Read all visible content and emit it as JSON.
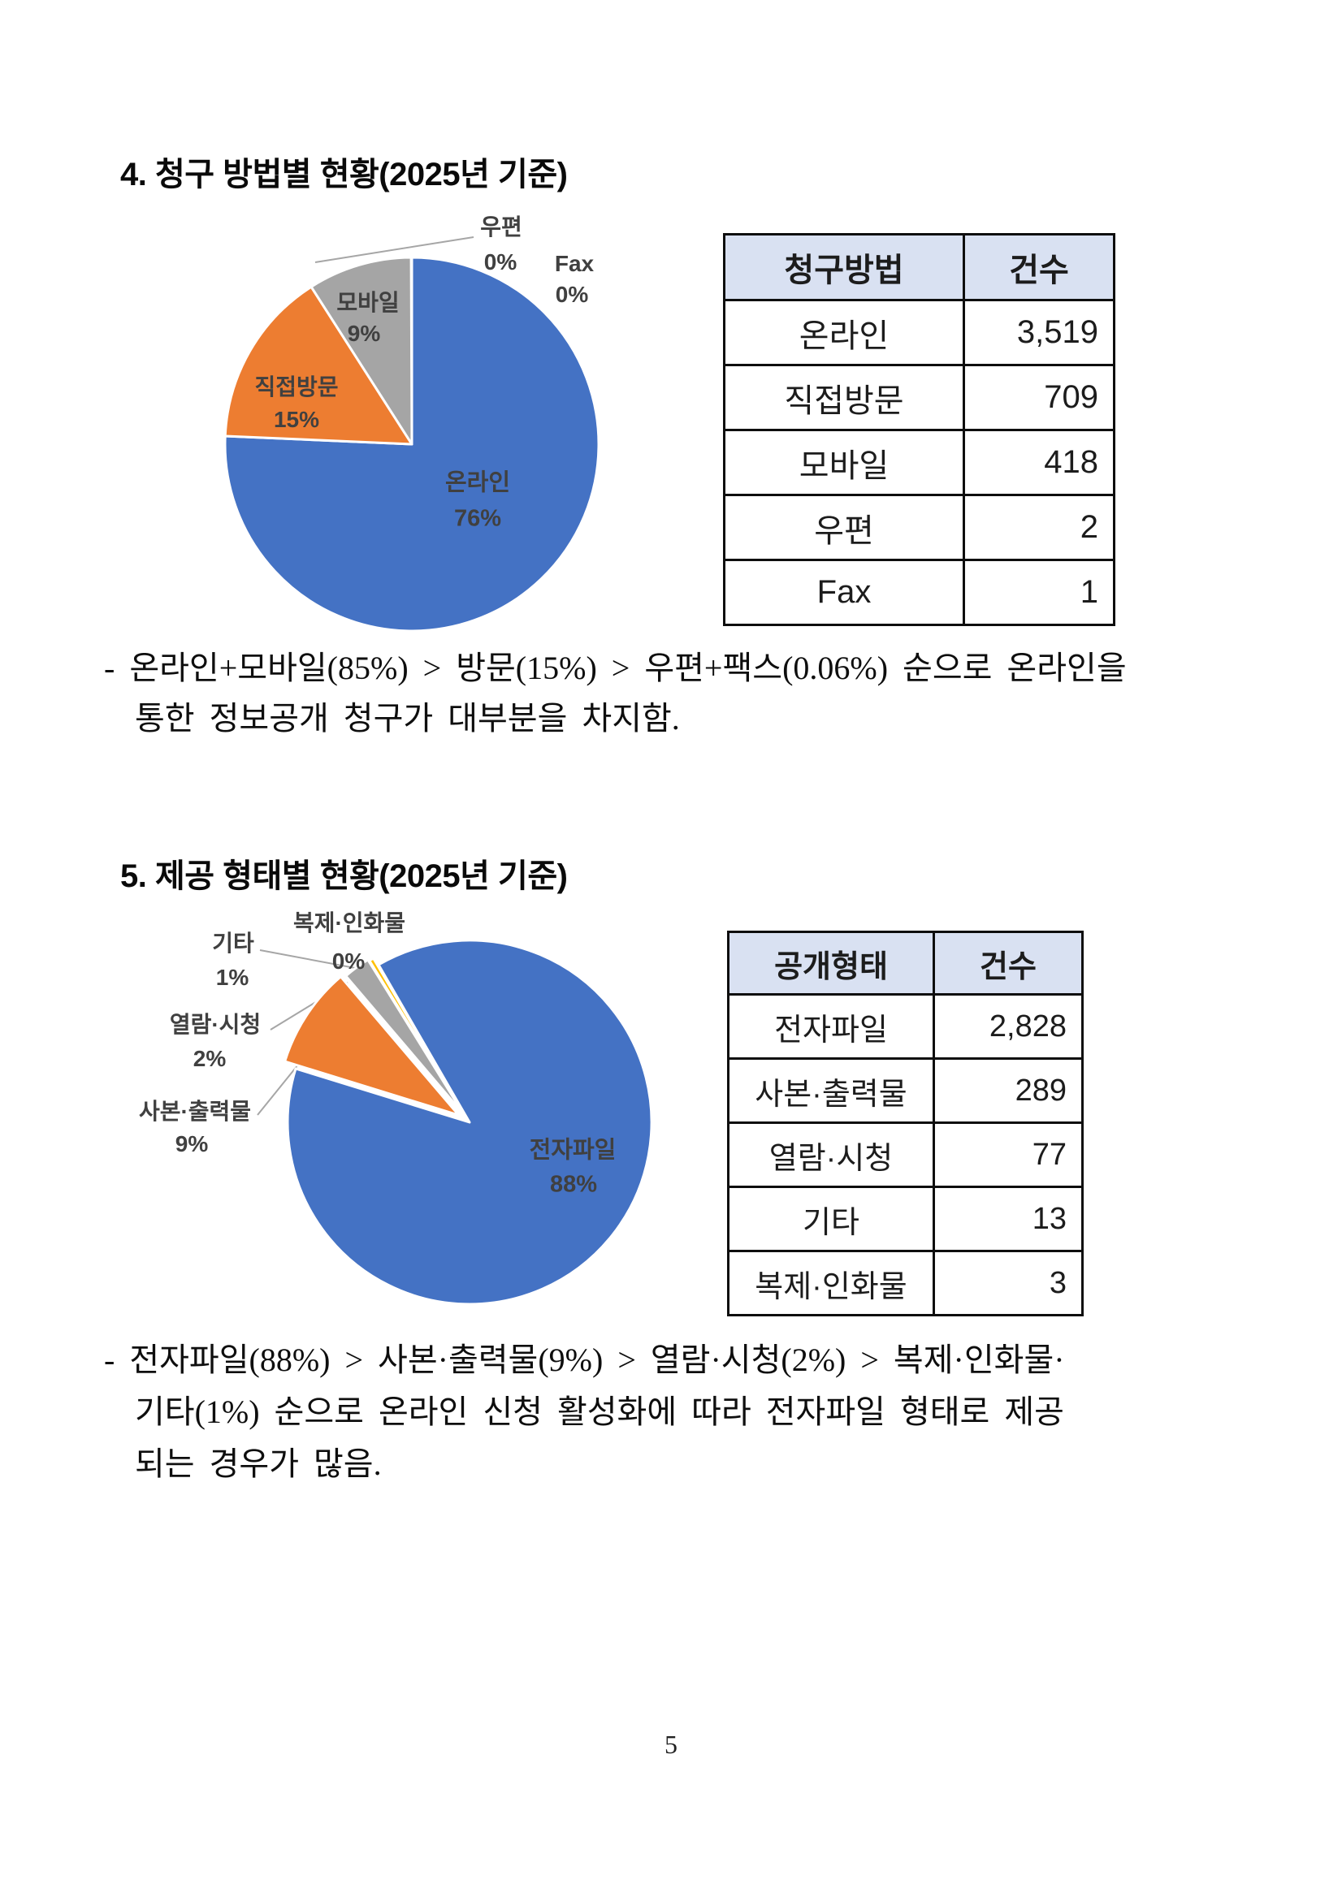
{
  "page": {
    "number": "5",
    "background": "#ffffff"
  },
  "section4": {
    "title": "4. 청구 방법별 현황(2025년 기준)",
    "table": {
      "headers": [
        "청구방법",
        "건수"
      ],
      "rows": [
        [
          "온라인",
          "3,519"
        ],
        [
          "직접방문",
          "709"
        ],
        [
          "모바일",
          "418"
        ],
        [
          "우편",
          "2"
        ],
        [
          "Fax",
          "1"
        ]
      ]
    },
    "note_lines": [
      "- 온라인+모바일(85%) > 방문(15%) > 우편+팩스(0.06%) 순으로 온라인을",
      "통한 정보공개 청구가 대부분을 차지함."
    ]
  },
  "section5": {
    "title": "5. 제공 형태별 현황(2025년 기준)",
    "table": {
      "headers": [
        "공개형태",
        "건수"
      ],
      "rows": [
        [
          "전자파일",
          "2,828"
        ],
        [
          "사본·출력물",
          "289"
        ],
        [
          "열람·시청",
          "77"
        ],
        [
          "기타",
          "13"
        ],
        [
          "복제·인화물",
          "3"
        ]
      ]
    },
    "note_lines": [
      "- 전자파일(88%) > 사본·출력물(9%) > 열람·시청(2%) > 복제·인화물·",
      "기타(1%) 순으로 온라인 신청 활성화에 따라 전자파일 형태로 제공",
      "되는 경우가 많음."
    ]
  },
  "chart_data": [
    {
      "type": "pie",
      "title": "청구 방법별 현황(2025년 기준)",
      "categories": [
        "온라인",
        "직접방문",
        "모바일",
        "우편",
        "Fax"
      ],
      "values": [
        3519,
        709,
        418,
        2,
        1
      ],
      "percent_labels": [
        "76%",
        "15%",
        "9%",
        "0%",
        "0%"
      ],
      "colors": [
        "#4472C4",
        "#ED7D31",
        "#A5A5A5",
        "#FFC000",
        "#5B9BD5"
      ],
      "keys": [
        "online",
        "visit",
        "mobile",
        "mail",
        "fax"
      ],
      "start_angle": 0,
      "explode": [
        0,
        0,
        0,
        0,
        0
      ],
      "legend": "none",
      "label_style": "category-and-percent"
    },
    {
      "type": "pie",
      "title": "제공 형태별 현황(2025년 기준)",
      "categories": [
        "전자파일",
        "사본·출력물",
        "열람·시청",
        "기타",
        "복제·인화물"
      ],
      "values": [
        2828,
        289,
        77,
        13,
        3
      ],
      "percent_labels": [
        "88%",
        "9%",
        "2%",
        "1%",
        "0%"
      ],
      "colors": [
        "#4472C4",
        "#ED7D31",
        "#A5A5A5",
        "#FFC000",
        "#5B9BD5"
      ],
      "keys": [
        "efile",
        "copy-print",
        "view",
        "etc",
        "repro-photo"
      ],
      "start_angle": -30,
      "explode": [
        0,
        16,
        12,
        10,
        0
      ],
      "legend": "none",
      "label_style": "category-and-percent"
    }
  ],
  "colors": {
    "accent_blue": "#4472C4",
    "accent_orange": "#ED7D31",
    "accent_gray": "#A5A5A5",
    "table_header_fill": "#D9E1F2",
    "pie_label_text": "#404040",
    "leader_line": "#A6A6A6"
  }
}
